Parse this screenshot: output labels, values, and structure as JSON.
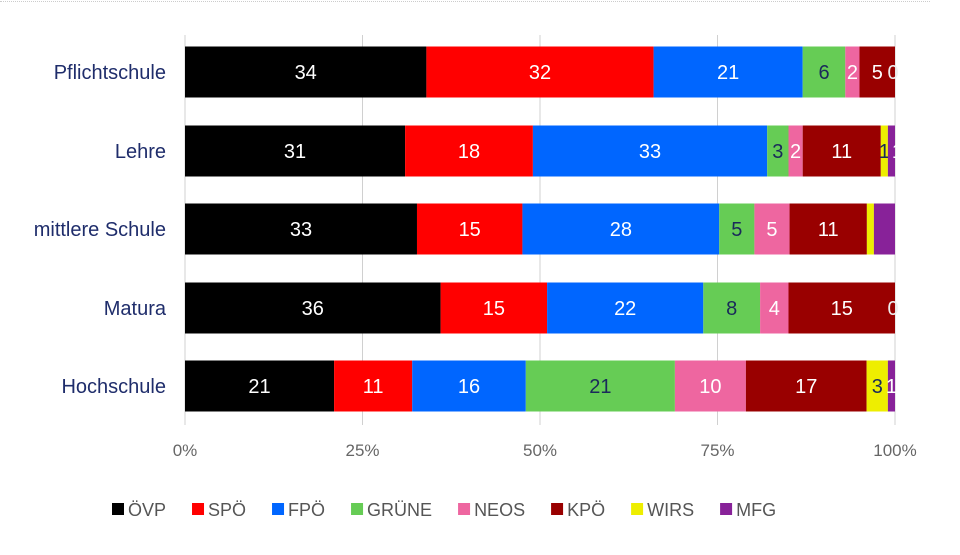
{
  "chart_data": {
    "type": "bar",
    "stacked": "percent",
    "orientation": "horizontal",
    "categories": [
      "Pflichtschule",
      "Lehre",
      "mittlere Schule",
      "Matura",
      "Hochschule"
    ],
    "series": [
      {
        "name": "ÖVP",
        "color": "#000000",
        "values": [
          34,
          31,
          33,
          36,
          21
        ],
        "label_color": "#ffffff"
      },
      {
        "name": "SPÖ",
        "color": "#ff0000",
        "values": [
          32,
          18,
          15,
          15,
          11
        ],
        "label_color": "#ffffff"
      },
      {
        "name": "FPÖ",
        "color": "#0066ff",
        "values": [
          21,
          33,
          28,
          22,
          16
        ],
        "label_color": "#ffffff"
      },
      {
        "name": "GRÜNE",
        "color": "#66cc55",
        "values": [
          6,
          3,
          5,
          8,
          21
        ],
        "label_color": "#1a2a5a"
      },
      {
        "name": "NEOS",
        "color": "#ee66a0",
        "values": [
          2,
          2,
          5,
          4,
          10
        ],
        "label_color": "#ffffff"
      },
      {
        "name": "KPÖ",
        "color": "#990000",
        "values": [
          5,
          11,
          11,
          15,
          17
        ],
        "label_color": "#ffffff"
      },
      {
        "name": "WIRS",
        "color": "#eeee00",
        "values": [
          0,
          1,
          1,
          0,
          3
        ],
        "label_color": "#1a2a5a"
      },
      {
        "name": "MFG",
        "color": "#882299",
        "values": [
          0,
          1,
          3,
          0,
          1
        ],
        "label_color": "#ffffff"
      }
    ],
    "hidden_labels": [
      [
        0,
        7
      ],
      [
        2,
        6
      ],
      [
        2,
        7
      ],
      [
        3,
        7
      ]
    ],
    "xlim": [
      0,
      100
    ],
    "xticks": [
      "0%",
      "25%",
      "50%",
      "75%",
      "100%"
    ],
    "grid": true,
    "legend": "bottom"
  }
}
